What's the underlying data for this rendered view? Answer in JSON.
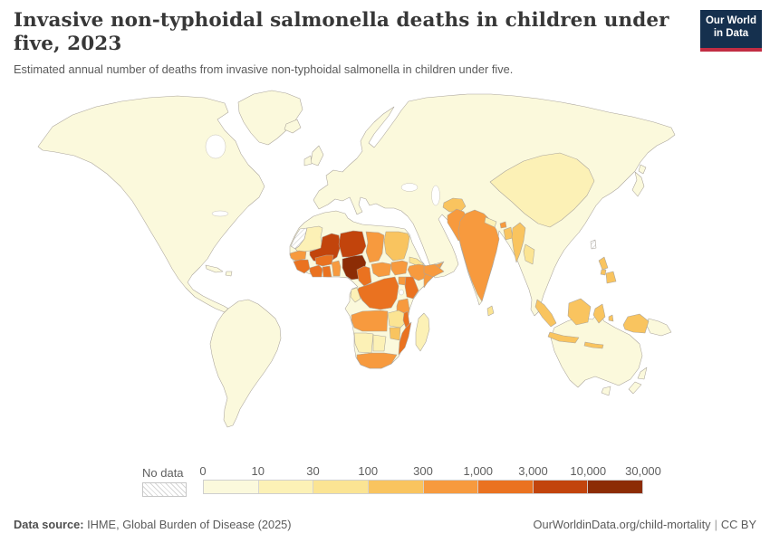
{
  "header": {
    "title": "Invasive non-typhoidal salmonella deaths in children under five, 2023",
    "subtitle": "Estimated annual number of deaths from invasive non-typhoidal salmonella in children under five.",
    "logo_line1": "Our World",
    "logo_line2": "in Data"
  },
  "legend": {
    "no_data_label": "No data",
    "ticks": [
      "0",
      "10",
      "30",
      "100",
      "300",
      "1,000",
      "3,000",
      "10,000",
      "30,000"
    ]
  },
  "footer": {
    "source_label": "Data source:",
    "source_text": " IHME, Global Burden of Disease (2025)",
    "link_text": "OurWorldinData.org/child-mortality",
    "separator": "|",
    "license": "CC BY"
  },
  "colors": {
    "background": "#ffffff",
    "land_default": "#fbf9dc",
    "country_border": "#aaa49b",
    "no_data_hatch": "#d6d6d6",
    "logo_bg": "#15304e",
    "logo_stripe": "#c22d43",
    "title_text": "#373737",
    "muted_text": "#5b5b5b"
  },
  "chart_data": {
    "type": "choropleth_map",
    "title": "Invasive non-typhoidal salmonella deaths in children under five, 2023",
    "metric": "Estimated annual number of deaths from invasive non-typhoidal salmonella in children under five",
    "year": 2023,
    "scale": "log-binned",
    "legend_position": "bottom",
    "bins": [
      {
        "bin": "1",
        "range": "0-10",
        "color": "#fbf9dc"
      },
      {
        "bin": "2",
        "range": "10-30",
        "color": "#fcf1b6"
      },
      {
        "bin": "3",
        "range": "30-100",
        "color": "#fbe493"
      },
      {
        "bin": "4",
        "range": "100-300",
        "color": "#f9c45f"
      },
      {
        "bin": "5",
        "range": "300-1,000",
        "color": "#f79a3e"
      },
      {
        "bin": "6",
        "range": "1,000-3,000",
        "color": "#ea7220"
      },
      {
        "bin": "7",
        "range": "3,000-10,000",
        "color": "#c2440c"
      },
      {
        "bin": "8",
        "range": "10,000-30,000",
        "color": "#8c2c05"
      }
    ],
    "regions": [
      {
        "id": "nigeria",
        "name": "Nigeria",
        "bin": "8"
      },
      {
        "id": "mali",
        "name": "Mali",
        "bin": "7"
      },
      {
        "id": "niger",
        "name": "Niger",
        "bin": "7"
      },
      {
        "id": "burkina",
        "name": "Burkina Faso",
        "bin": "6"
      },
      {
        "id": "ci",
        "name": "Cote d'Ivoire",
        "bin": "6"
      },
      {
        "id": "ghana",
        "name": "Ghana",
        "bin": "6"
      },
      {
        "id": "guinea_sl",
        "name": "Guinea / Sierra Leone",
        "bin": "6"
      },
      {
        "id": "cameroon",
        "name": "Cameroon",
        "bin": "6"
      },
      {
        "id": "drc",
        "name": "Democratic Republic of Congo",
        "bin": "6"
      },
      {
        "id": "kenya",
        "name": "Kenya",
        "bin": "6"
      },
      {
        "id": "mozambique",
        "name": "Mozambique",
        "bin": "6"
      },
      {
        "id": "malawi",
        "name": "Malawi",
        "bin": "6"
      },
      {
        "id": "chad",
        "name": "Chad",
        "bin": "5"
      },
      {
        "id": "senegal",
        "name": "Senegal",
        "bin": "5"
      },
      {
        "id": "togo_benin",
        "name": "Togo / Benin",
        "bin": "5"
      },
      {
        "id": "car",
        "name": "Central African Republic",
        "bin": "5"
      },
      {
        "id": "ssudan",
        "name": "South Sudan",
        "bin": "5"
      },
      {
        "id": "ethiopia",
        "name": "Ethiopia",
        "bin": "5"
      },
      {
        "id": "somalia",
        "name": "Somalia",
        "bin": "5"
      },
      {
        "id": "uganda",
        "name": "Uganda",
        "bin": "5"
      },
      {
        "id": "tanzania",
        "name": "Tanzania",
        "bin": "5"
      },
      {
        "id": "angola",
        "name": "Angola",
        "bin": "5"
      },
      {
        "id": "s_africa",
        "name": "South Africa",
        "bin": "5"
      },
      {
        "id": "yemen",
        "name": "Yemen",
        "bin": "5"
      },
      {
        "id": "india",
        "name": "India",
        "bin": "5"
      },
      {
        "id": "pakistan",
        "name": "Pakistan",
        "bin": "5"
      },
      {
        "id": "bhutan",
        "name": "Bhutan",
        "bin": "5"
      },
      {
        "id": "sudan",
        "name": "Sudan",
        "bin": "4"
      },
      {
        "id": "zimbabwe",
        "name": "Zimbabwe",
        "bin": "4"
      },
      {
        "id": "afghanistan",
        "name": "Afghanistan",
        "bin": "4"
      },
      {
        "id": "myanmar",
        "name": "Myanmar",
        "bin": "4"
      },
      {
        "id": "bangladesh",
        "name": "Bangladesh",
        "bin": "4"
      },
      {
        "id": "indonesia",
        "name": "Indonesia",
        "bin": "4"
      },
      {
        "id": "philippines",
        "name": "Philippines",
        "bin": "4"
      },
      {
        "id": "west_papua",
        "name": "Indonesia (Papua)",
        "bin": "4"
      },
      {
        "id": "zambia",
        "name": "Zambia",
        "bin": "3"
      },
      {
        "id": "eritrea",
        "name": "Eritrea / Djibouti",
        "bin": "3"
      },
      {
        "id": "laos_cambodia",
        "name": "Laos / Cambodia",
        "bin": "3"
      },
      {
        "id": "sri_lanka",
        "name": "Sri Lanka",
        "bin": "3"
      },
      {
        "id": "china",
        "name": "China",
        "bin": "2"
      },
      {
        "id": "mauritania",
        "name": "Mauritania",
        "bin": "2"
      },
      {
        "id": "namibia",
        "name": "Namibia",
        "bin": "2"
      },
      {
        "id": "botswana",
        "name": "Botswana",
        "bin": "2"
      },
      {
        "id": "madagascar",
        "name": "Madagascar",
        "bin": "2"
      },
      {
        "id": "gabon_congo",
        "name": "Gabon / Congo",
        "bin": "2"
      },
      {
        "id": "nepal",
        "name": "Nepal",
        "bin": "2"
      },
      {
        "id": "north_america",
        "name": "North America",
        "bin": "1"
      },
      {
        "id": "south_america",
        "name": "South America",
        "bin": "1"
      },
      {
        "id": "eurasia",
        "name": "Europe / Russia / Middle East",
        "bin": "1"
      },
      {
        "id": "australia",
        "name": "Australia",
        "bin": "1"
      },
      {
        "id": "greenland",
        "name": "Greenland",
        "bin": "1"
      },
      {
        "id": "japan",
        "name": "Japan",
        "bin": "1"
      },
      {
        "id": "png",
        "name": "Papua New Guinea",
        "bin": "1"
      },
      {
        "id": "western_sahara",
        "name": "Western Sahara",
        "bin": "nodata"
      },
      {
        "id": "taiwan",
        "name": "Taiwan",
        "bin": "nodata"
      }
    ]
  }
}
